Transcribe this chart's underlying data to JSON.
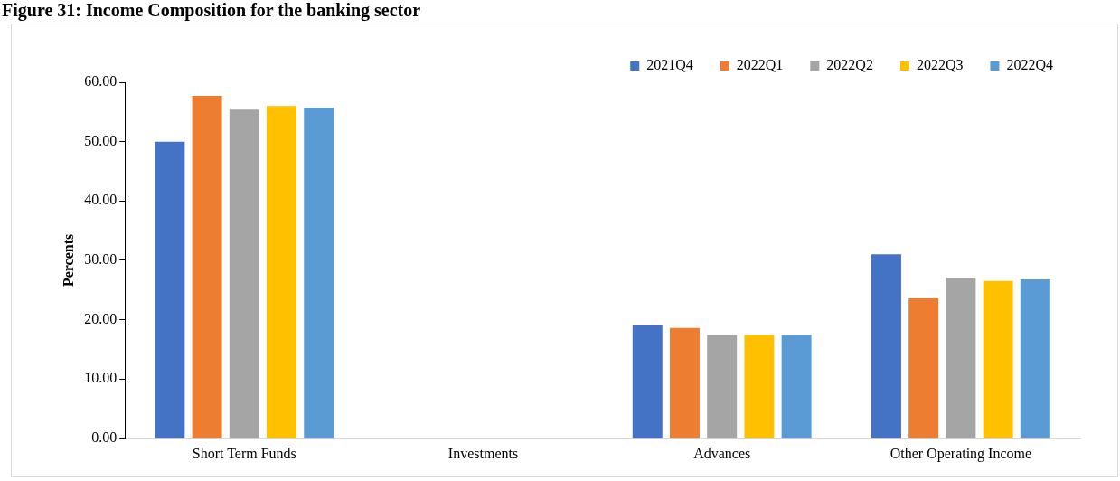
{
  "chart_data": {
    "type": "bar",
    "title": "Figure 31: Income Composition for the banking sector",
    "ylabel": "Percents",
    "categories": [
      "Short Term Funds",
      "Investments",
      "Advances",
      "Other Operating Income"
    ],
    "series": [
      {
        "name": "2021Q4",
        "color": "#4472c4",
        "values": [
          50.0,
          0,
          19.0,
          31.0
        ]
      },
      {
        "name": "2022Q1",
        "color": "#ed7d31",
        "values": [
          57.7,
          0,
          18.6,
          23.6
        ]
      },
      {
        "name": "2022Q2",
        "color": "#a5a5a5",
        "values": [
          55.4,
          0,
          17.4,
          27.1
        ]
      },
      {
        "name": "2022Q3",
        "color": "#ffc000",
        "values": [
          56.0,
          0,
          17.4,
          26.5
        ]
      },
      {
        "name": "2022Q4",
        "color": "#5b9bd5",
        "values": [
          55.7,
          0,
          17.4,
          26.8
        ]
      }
    ],
    "ylim": [
      0,
      60
    ],
    "yticks": [
      {
        "value": 0,
        "label": "0.00"
      },
      {
        "value": 10,
        "label": "10.00"
      },
      {
        "value": 20,
        "label": "20.00"
      },
      {
        "value": 30,
        "label": "30.00"
      },
      {
        "value": 40,
        "label": "40.00"
      },
      {
        "value": 50,
        "label": "50.00"
      },
      {
        "value": 60,
        "label": "60.00"
      }
    ],
    "grid": false,
    "legend": "top right"
  }
}
